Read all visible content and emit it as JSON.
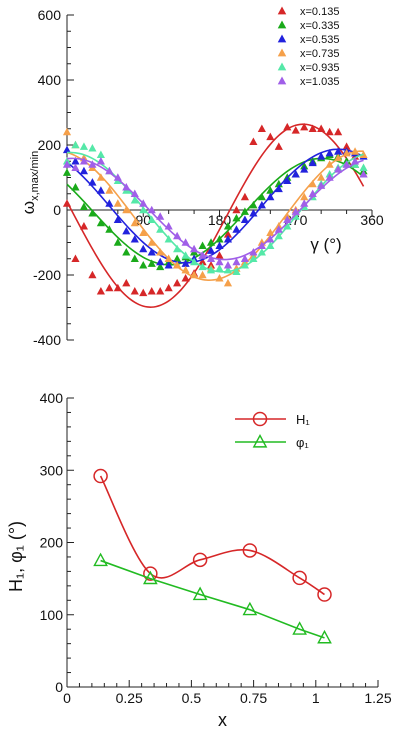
{
  "chart_data": [
    {
      "type": "scatter",
      "title": "",
      "xlabel": "γ (°)",
      "ylabel": "ω_x,max/min",
      "xlim": [
        0,
        360
      ],
      "ylim": [
        -400,
        600
      ],
      "xticks": [
        90,
        180,
        270,
        360
      ],
      "yticks": [
        -400,
        -200,
        0,
        200,
        400,
        600
      ],
      "legend_position": "top-right",
      "grid": false,
      "series": [
        {
          "name": "x=0.135",
          "color": "#d62728",
          "fit": [
            {
              "a": 0,
              "b": 0
            }
          ],
          "x": [
            0,
            10,
            20,
            30,
            40,
            50,
            60,
            70,
            80,
            90,
            100,
            110,
            120,
            130,
            140,
            150,
            160,
            170,
            180,
            190,
            200,
            210,
            220,
            230,
            240,
            250,
            260,
            270,
            280,
            290,
            300,
            310,
            320,
            330,
            340,
            350
          ],
          "y": [
            20,
            -150,
            -50,
            -200,
            -250,
            -240,
            -240,
            -225,
            -250,
            -255,
            -250,
            -250,
            -240,
            -225,
            -210,
            -195,
            -160,
            -170,
            -140,
            -75,
            0,
            40,
            210,
            250,
            225,
            195,
            255,
            245,
            255,
            250,
            250,
            240,
            240,
            195,
            165,
            110
          ]
        },
        {
          "name": "x=0.335",
          "color": "#1aaa1a",
          "x": [
            0,
            10,
            20,
            30,
            40,
            50,
            60,
            70,
            80,
            90,
            100,
            110,
            120,
            130,
            140,
            150,
            160,
            170,
            180,
            190,
            200,
            210,
            220,
            230,
            240,
            250,
            260,
            270,
            280,
            290,
            300,
            310,
            320,
            330,
            340,
            350
          ],
          "y": [
            115,
            70,
            10,
            -10,
            -40,
            -60,
            -100,
            -130,
            -150,
            -170,
            -165,
            -175,
            -160,
            -150,
            -145,
            -130,
            -110,
            -100,
            -90,
            -50,
            -25,
            -5,
            15,
            40,
            60,
            80,
            100,
            110,
            135,
            150,
            160,
            170,
            165,
            150,
            140,
            120
          ]
        },
        {
          "name": "x=0.535",
          "color": "#2222dd",
          "x": [
            0,
            10,
            20,
            30,
            40,
            50,
            60,
            70,
            80,
            90,
            100,
            110,
            120,
            130,
            140,
            150,
            160,
            170,
            180,
            190,
            200,
            210,
            220,
            230,
            240,
            250,
            260,
            270,
            280,
            290,
            300,
            310,
            320,
            330,
            340,
            350
          ],
          "y": [
            185,
            150,
            120,
            85,
            60,
            20,
            -30,
            -65,
            -90,
            -120,
            -130,
            -160,
            -170,
            -170,
            -165,
            -150,
            -140,
            -125,
            -110,
            -90,
            -60,
            -30,
            -10,
            15,
            40,
            65,
            90,
            110,
            125,
            145,
            165,
            175,
            180,
            180,
            175,
            165
          ]
        },
        {
          "name": "x=0.735",
          "color": "#f5a04a",
          "x": [
            0,
            10,
            20,
            30,
            40,
            50,
            60,
            70,
            80,
            90,
            100,
            110,
            120,
            130,
            140,
            150,
            160,
            170,
            180,
            190,
            200,
            210,
            220,
            230,
            240,
            250,
            260,
            270,
            280,
            290,
            300,
            310,
            320,
            330,
            340,
            350
          ],
          "y": [
            240,
            200,
            160,
            130,
            100,
            60,
            20,
            0,
            -40,
            -70,
            -100,
            -130,
            -150,
            -170,
            -185,
            -200,
            -200,
            -180,
            -210,
            -225,
            -180,
            -160,
            -140,
            -100,
            -70,
            -50,
            -20,
            0,
            40,
            80,
            100,
            140,
            160,
            175,
            180,
            170
          ]
        },
        {
          "name": "x=0.935",
          "color": "#55e8a8",
          "x": [
            0,
            10,
            20,
            30,
            40,
            50,
            60,
            70,
            80,
            90,
            100,
            110,
            120,
            130,
            140,
            150,
            160,
            170,
            180,
            190,
            200,
            210,
            220,
            230,
            240,
            250,
            260,
            270,
            280,
            290,
            300,
            310,
            320,
            330,
            340,
            350
          ],
          "y": [
            150,
            200,
            195,
            190,
            170,
            120,
            90,
            60,
            30,
            0,
            -30,
            -60,
            -90,
            -120,
            -140,
            -160,
            -175,
            -185,
            -180,
            -185,
            -190,
            -170,
            -150,
            -130,
            -110,
            -80,
            -50,
            -20,
            10,
            40,
            80,
            110,
            130,
            140,
            140,
            130
          ]
        },
        {
          "name": "x=1.035",
          "color": "#a05fe8",
          "x": [
            0,
            10,
            20,
            30,
            40,
            50,
            60,
            70,
            80,
            90,
            100,
            110,
            120,
            130,
            140,
            150,
            160,
            170,
            180,
            190,
            200,
            210,
            220,
            230,
            240,
            250,
            260,
            270,
            280,
            290,
            300,
            310,
            320,
            330,
            340,
            350
          ],
          "y": [
            140,
            130,
            150,
            140,
            150,
            120,
            100,
            70,
            50,
            20,
            0,
            -20,
            -50,
            -80,
            -100,
            -120,
            -140,
            -150,
            -160,
            -170,
            -160,
            -150,
            -130,
            -110,
            -90,
            -60,
            -30,
            -5,
            20,
            50,
            75,
            100,
            125,
            140,
            150,
            110
          ]
        }
      ]
    },
    {
      "type": "line",
      "title": "",
      "xlabel": "x",
      "ylabel": "H₁, φ₁ (°)",
      "xlim": [
        0,
        1.25
      ],
      "ylim": [
        0,
        400
      ],
      "xticks": [
        0,
        0.25,
        0.5,
        0.75,
        1,
        1.25
      ],
      "xtick_labels": [
        "0",
        "0.25",
        "0.5",
        "0.75",
        "1",
        "1.25"
      ],
      "yticks": [
        0,
        100,
        200,
        300,
        400
      ],
      "legend_position": "top-right",
      "grid": false,
      "series": [
        {
          "name": "H₁",
          "color": "#d62728",
          "marker": "circle",
          "x": [
            0.135,
            0.335,
            0.535,
            0.735,
            0.935,
            1.035
          ],
          "y": [
            292,
            157,
            176,
            189,
            151,
            128
          ]
        },
        {
          "name": "φ₁",
          "color": "#22bb22",
          "marker": "triangle",
          "x": [
            0.135,
            0.335,
            0.535,
            0.735,
            0.935,
            1.035
          ],
          "y": [
            175,
            150,
            128,
            107,
            80,
            68
          ]
        }
      ]
    }
  ]
}
